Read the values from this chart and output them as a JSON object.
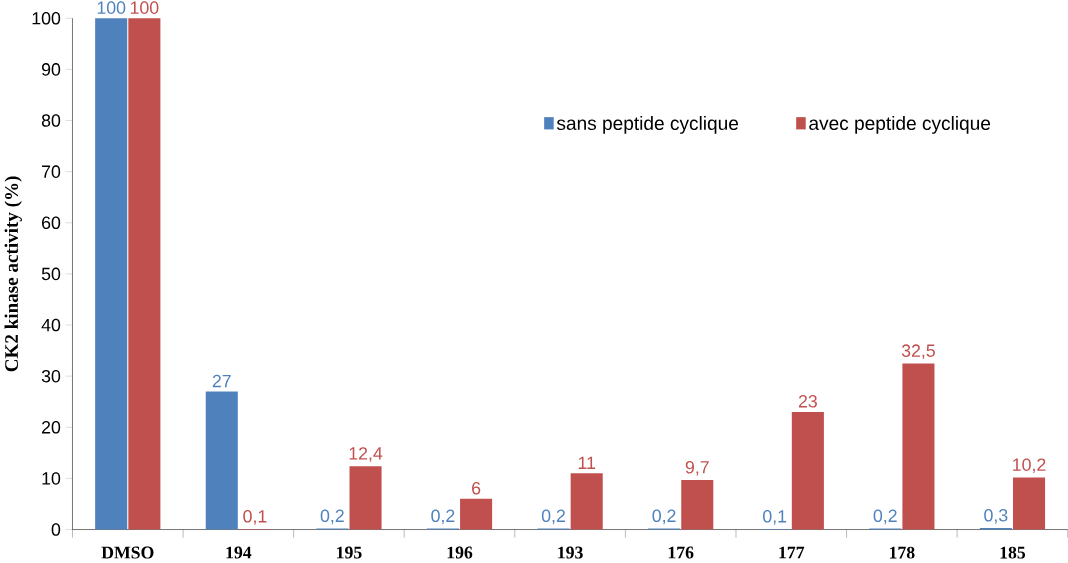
{
  "chart_data": {
    "type": "bar",
    "ylabel": "CK2 kinase activity (%)",
    "categories": [
      "DMSO",
      "194",
      "195",
      "196",
      "193",
      "176",
      "177",
      "178",
      "185"
    ],
    "series": [
      {
        "name": "sans peptide cyclique",
        "color": "#4f81bd",
        "values": [
          100,
          27,
          0.2,
          0.2,
          0.2,
          0.2,
          0.1,
          0.2,
          0.3
        ],
        "value_labels": [
          "100",
          "27",
          "0,2",
          "0,2",
          "0,2",
          "0,2",
          "0,1",
          "0,2",
          "0,3"
        ]
      },
      {
        "name": "avec peptide cyclique",
        "color": "#c0504d",
        "values": [
          100,
          0.1,
          12.4,
          6,
          11,
          9.7,
          23,
          32.5,
          10.2
        ],
        "value_labels": [
          "100",
          "0,1",
          "12,4",
          "6",
          "11",
          "9,7",
          "23",
          "32,5",
          "10,2"
        ]
      }
    ],
    "ylim": [
      0,
      100
    ],
    "yticks": [
      0,
      10,
      20,
      30,
      40,
      50,
      60,
      70,
      80,
      90,
      100
    ],
    "legend": "top right",
    "grid": false
  }
}
